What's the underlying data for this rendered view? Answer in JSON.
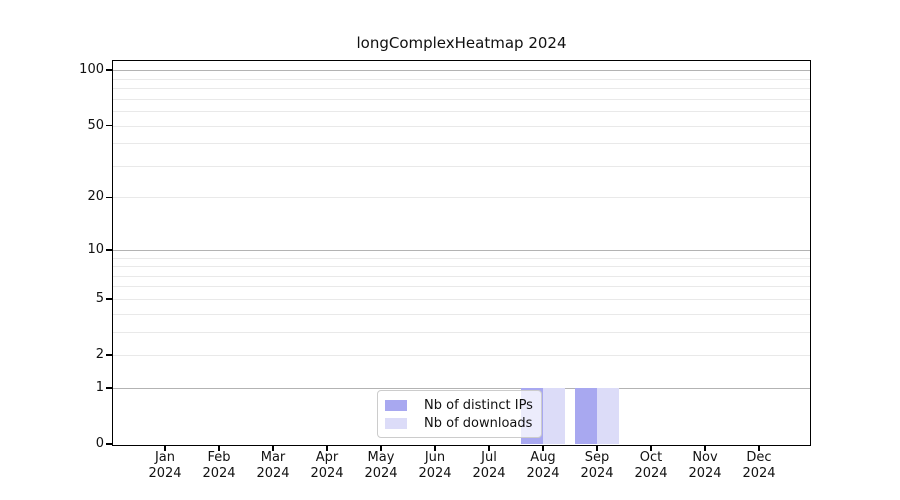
{
  "title": "longComplexHeatmap 2024",
  "chart_data": {
    "type": "bar",
    "title": "longComplexHeatmap 2024",
    "categories": [
      "Jan 2024",
      "Feb 2024",
      "Mar 2024",
      "Apr 2024",
      "May 2024",
      "Jun 2024",
      "Jul 2024",
      "Aug 2024",
      "Sep 2024",
      "Oct 2024",
      "Nov 2024",
      "Dec 2024"
    ],
    "series": [
      {
        "name": "Nb of distinct IPs",
        "color": "#a8a8f0",
        "values": [
          0,
          0,
          0,
          0,
          0,
          0,
          0,
          1,
          1,
          0,
          0,
          0
        ]
      },
      {
        "name": "Nb of downloads",
        "color": "#dcdcf8",
        "values": [
          0,
          0,
          0,
          0,
          0,
          0,
          0,
          1,
          1,
          0,
          0,
          0
        ]
      }
    ],
    "xlabel": "",
    "ylabel": "",
    "yscale": "log1p",
    "ylim": [
      0,
      112
    ],
    "yticks": [
      0,
      1,
      2,
      5,
      10,
      20,
      50,
      100
    ],
    "grid": true,
    "grid_major": [
      1,
      10,
      100
    ],
    "grid_minor": [
      2,
      3,
      4,
      6,
      7,
      8,
      9,
      5,
      20,
      30,
      40,
      50,
      60,
      70,
      80,
      90
    ],
    "legend": {
      "position": "lower center",
      "items": [
        "Nb of distinct IPs",
        "Nb of downloads"
      ]
    },
    "colors": {
      "grid_major": "#b3b3b3",
      "grid_minor": "#e9e9e9",
      "spine": "#000000",
      "legend_border": "#cccccc",
      "text": "#111111"
    }
  }
}
